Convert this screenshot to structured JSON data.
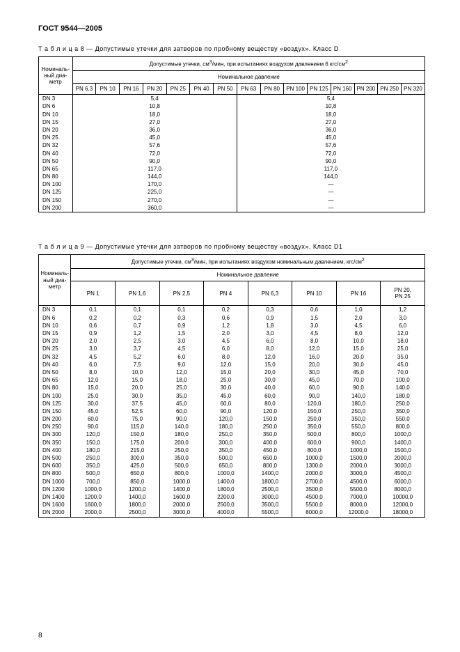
{
  "doc_title": "ГОСТ 9544—2005",
  "page_number": "8",
  "table8": {
    "caption_prefix": "Т а б л и ц а  8",
    "caption_rest": " — Допустимые утечки для затворов по пробному веществу «воздух». Класс D",
    "header_line1_a": "Допустимые утечки, см",
    "header_line1_b": "/мин, при испытаниях воздухом давлением 6 кгс/см",
    "header_line2": "Номинальное давление",
    "rowheader": "Номиналь-\nный диа-\nметр",
    "pn_left": [
      "PN 6,3",
      "PN 10",
      "PN 16",
      "PN 20",
      "PN 25",
      "PN 40",
      "PN 50"
    ],
    "pn_right": [
      "PN 63",
      "PN 80",
      "PN 100",
      "PN 125",
      "PN 160",
      "PN 200",
      "PN 250",
      "PN 320"
    ],
    "rows": [
      {
        "dn": "DN 3",
        "l": "5,4",
        "r": "5,4"
      },
      {
        "dn": "DN 6",
        "l": "10,8",
        "r": "10,8"
      },
      {
        "dn": "DN 10",
        "l": "18,0",
        "r": "18,0"
      },
      {
        "dn": "DN 15",
        "l": "27,0",
        "r": "27,0"
      },
      {
        "dn": "DN 20",
        "l": "36,0",
        "r": "36,0"
      },
      {
        "dn": "DN 25",
        "l": "45,0",
        "r": "45,0"
      },
      {
        "dn": "DN 32",
        "l": "57,6",
        "r": "57,6"
      },
      {
        "dn": "DN 40",
        "l": "72,0",
        "r": "72,0"
      },
      {
        "dn": "DN 50",
        "l": "90,0",
        "r": "90,0"
      },
      {
        "dn": "DN 65",
        "l": "117,0",
        "r": "117,0"
      },
      {
        "dn": "DN 80",
        "l": "144,0",
        "r": "144,0"
      },
      {
        "dn": "DN 100",
        "l": "170,0",
        "r": "—"
      },
      {
        "dn": "DN 125",
        "l": "225,0",
        "r": "—"
      },
      {
        "dn": "DN 150",
        "l": "270,0",
        "r": "—"
      },
      {
        "dn": "DN 200",
        "l": "360,0",
        "r": "—"
      }
    ]
  },
  "table9": {
    "caption_prefix": "Т а б л и ц а  9",
    "caption_rest": " — Допустимые утечки для затворов по пробному веществу «воздух». Класс D1",
    "header_line1_a": "Допустимые утечки, см",
    "header_line1_b": "/мин, при испытаниях воздухом номинальным давлением, кгс/см",
    "header_line2": "Номинальное давление",
    "rowheader": "Номиналь-\nный диа-\nметр",
    "pns": [
      "PN 1",
      "PN 1,6",
      "PN 2,5",
      "PN 4",
      "PN 6,3",
      "PN 10",
      "PN 16",
      "PN 20,\nPN 25"
    ],
    "rows": [
      {
        "dn": "DN 3",
        "v": [
          "0,1",
          "0,1",
          "0,1",
          "0,2",
          "0,3",
          "0,6",
          "1,0",
          "1,2"
        ]
      },
      {
        "dn": "DN 6",
        "v": [
          "0,2",
          "0,2",
          "0,3",
          "0,6",
          "0,9",
          "1,5",
          "2,0",
          "3,0"
        ]
      },
      {
        "dn": "DN 10",
        "v": [
          "0,6",
          "0,7",
          "0,9",
          "1,2",
          "1,8",
          "3,0",
          "4,5",
          "6,0"
        ]
      },
      {
        "dn": "DN 15",
        "v": [
          "0,9",
          "1,2",
          "1,5",
          "2,0",
          "3,0",
          "4,5",
          "8,0",
          "12,0"
        ]
      },
      {
        "dn": "DN 20",
        "v": [
          "2,0",
          "2,5",
          "3,0",
          "4,5",
          "6,0",
          "8,0",
          "10,0",
          "18,0"
        ]
      },
      {
        "dn": "DN 25",
        "v": [
          "3,0",
          "3,7",
          "4,5",
          "6,0",
          "8,0",
          "12,0",
          "15,0",
          "25,0"
        ]
      },
      {
        "dn": "DN 32",
        "v": [
          "4,5",
          "5,2",
          "6,0",
          "8,0",
          "12,0",
          "16,0",
          "20,0",
          "35,0"
        ]
      },
      {
        "dn": "DN 40",
        "v": [
          "6,0",
          "7,5",
          "9,0",
          "12,0",
          "15,0",
          "20,0",
          "30,0",
          "45,0"
        ]
      },
      {
        "dn": "DN 50",
        "v": [
          "8,0",
          "10,0",
          "12,0",
          "15,0",
          "20,0",
          "30,0",
          "45,0",
          "70,0"
        ]
      },
      {
        "dn": "DN 65",
        "v": [
          "12,0",
          "15,0",
          "18,0",
          "25,0",
          "30,0",
          "45,0",
          "70,0",
          "100,0"
        ]
      },
      {
        "dn": "DN 80",
        "v": [
          "15,0",
          "20,0",
          "25,0",
          "30,0",
          "40,0",
          "60,0",
          "90,0",
          "140,0"
        ]
      },
      {
        "dn": "DN 100",
        "v": [
          "25,0",
          "30,0",
          "35,0",
          "45,0",
          "60,0",
          "90,0",
          "140,0",
          "180,0"
        ]
      },
      {
        "dn": "DN 125",
        "v": [
          "30,0",
          "37,5",
          "45,0",
          "60,0",
          "80,0",
          "120,0",
          "180,0",
          "250,0"
        ]
      },
      {
        "dn": "DN 150",
        "v": [
          "45,0",
          "52,5",
          "60,0",
          "90,0",
          "120,0",
          "150,0",
          "250,0",
          "350,0"
        ]
      },
      {
        "dn": "DN 200",
        "v": [
          "60,0",
          "75,0",
          "90,0",
          "120,0",
          "150,0",
          "250,0",
          "350,0",
          "550,0"
        ]
      },
      {
        "dn": "DN 250",
        "v": [
          "90,0",
          "115,0",
          "140,0",
          "180,0",
          "250,0",
          "350,0",
          "550,0",
          "800,0"
        ]
      },
      {
        "dn": "DN 300",
        "v": [
          "120,0",
          "150,0",
          "180,0",
          "250,0",
          "350,0",
          "500,0",
          "800,0",
          "1000,0"
        ]
      },
      {
        "dn": "DN 350",
        "v": [
          "150,0",
          "175,0",
          "200,0",
          "300,0",
          "400,0",
          "600,0",
          "900,0",
          "1400,0"
        ]
      },
      {
        "dn": "DN 400",
        "v": [
          "180,0",
          "215,0",
          "250,0",
          "350,0",
          "450,0",
          "800,0",
          "1000,0",
          "1500,0"
        ]
      },
      {
        "dn": "DN 500",
        "v": [
          "250,0",
          "300,0",
          "350,0",
          "500,0",
          "650,0",
          "1000,0",
          "1500,0",
          "2000,0"
        ]
      },
      {
        "dn": "DN 600",
        "v": [
          "350,0",
          "425,0",
          "500,0",
          "650,0",
          "800,0",
          "1300,0",
          "2000,0",
          "3000,0"
        ]
      },
      {
        "dn": "DN 800",
        "v": [
          "500,0",
          "650,0",
          "800,0",
          "1000,0",
          "1400,0",
          "2000,0",
          "3000,0",
          "4500,0"
        ]
      },
      {
        "dn": "DN 1000",
        "v": [
          "700,0",
          "850,0",
          "1000,0",
          "1400,0",
          "1800,0",
          "2700,0",
          "4500,0",
          "6000,0"
        ]
      },
      {
        "dn": "DN 1200",
        "v": [
          "1000,0",
          "1200,0",
          "1400,0",
          "1800,0",
          "2500,0",
          "3500,0",
          "5500,0",
          "8000,0"
        ]
      },
      {
        "dn": "DN 1400",
        "v": [
          "1200,0",
          "1400,0",
          "1600,0",
          "2200,0",
          "3000,0",
          "4500,0",
          "7000,0",
          "10000,0"
        ]
      },
      {
        "dn": "DN 1600",
        "v": [
          "1600,0",
          "1800,0",
          "2000,0",
          "2500,0",
          "3500,0",
          "5500,0",
          "8000,0",
          "12000,0"
        ]
      },
      {
        "dn": "DN 2000",
        "v": [
          "2000,0",
          "2500,0",
          "3000,0",
          "4000,0",
          "5500,0",
          "8000,0",
          "12000,0",
          "18000,0"
        ]
      }
    ]
  }
}
